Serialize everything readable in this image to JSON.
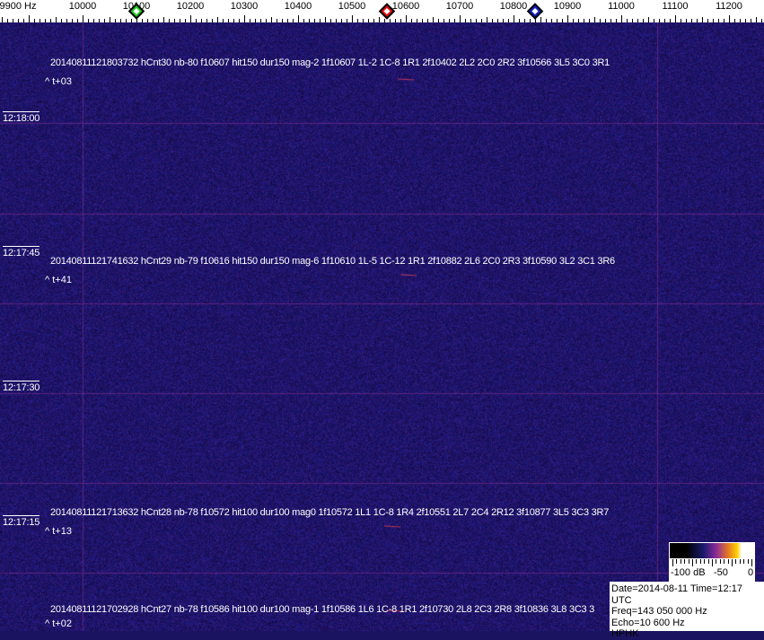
{
  "frequency_axis": {
    "labels": [
      {
        "hz": 9900,
        "text": "9900 Hz"
      },
      {
        "hz": 10000,
        "text": "10000"
      },
      {
        "hz": 10100,
        "text": "10100"
      },
      {
        "hz": 10200,
        "text": "10200"
      },
      {
        "hz": 10300,
        "text": "10300"
      },
      {
        "hz": 10400,
        "text": "10400"
      },
      {
        "hz": 10500,
        "text": "10500"
      },
      {
        "hz": 10600,
        "text": "10600"
      },
      {
        "hz": 10700,
        "text": "10700"
      },
      {
        "hz": 10800,
        "text": "10800"
      },
      {
        "hz": 10900,
        "text": "10900"
      },
      {
        "hz": 11000,
        "text": "11000"
      },
      {
        "hz": 11100,
        "text": "11100"
      },
      {
        "hz": 11200,
        "text": "11200"
      }
    ],
    "markers": [
      {
        "name": "green-marker",
        "hz": 10100,
        "color": "#22cc22"
      },
      {
        "name": "red-marker",
        "hz": 10565,
        "color": "#dd1111"
      },
      {
        "name": "blue-marker",
        "hz": 10840,
        "color": "#1122cc"
      }
    ]
  },
  "time_labels": [
    "12:18:00",
    "12:17:45",
    "12:17:30",
    "12:17:15"
  ],
  "events": [
    {
      "text": "20140811121803732 hCnt30 nb-80 f10607 hit150 dur150 mag-2 1f10607 1L-2 1C-8 1R1 2f10402 2L2 2C0 2R2 3f10566 3L5 3C0 3R1",
      "offset": "^ t+03"
    },
    {
      "text": "20140811121741632 hCnt29 nb-79 f10616 hit150 dur150 mag-6 1f10610 1L-5 1C-12 1R1 2f10882 2L6 2C0 2R3 3f10590 3L2 3C1 3R6",
      "offset": "^ t+41"
    },
    {
      "text": "20140811121713632 hCnt28 nb-78 f10572 hit100 dur100 mag0 1f10572 1L1 1C-8 1R4 2f10551 2L7 2C4 2R12 3f10877 3L5 3C3 3R7",
      "offset": "^ t+13"
    },
    {
      "text": "20140811121702928 hCnt27 nb-78 f10586 hit100 dur100 mag-1 1f10586 1L6 1C-8 1R1 2f10730 2L8 2C3 2R8 3f10836 3L8 3C3 3",
      "offset": "^ t+02"
    }
  ],
  "colorbar": {
    "labels": [
      "-100 dB",
      "-50",
      "0"
    ]
  },
  "info": {
    "line1": "Date=2014-08-11 Time=12:17 UTC",
    "line2": "Freq=143 050 000 Hz",
    "line3": "Echo=10 600 Hz",
    "line4": "HPHK"
  },
  "colors": {
    "background": "#1a1460",
    "grid_line": "#6a2a8a"
  }
}
